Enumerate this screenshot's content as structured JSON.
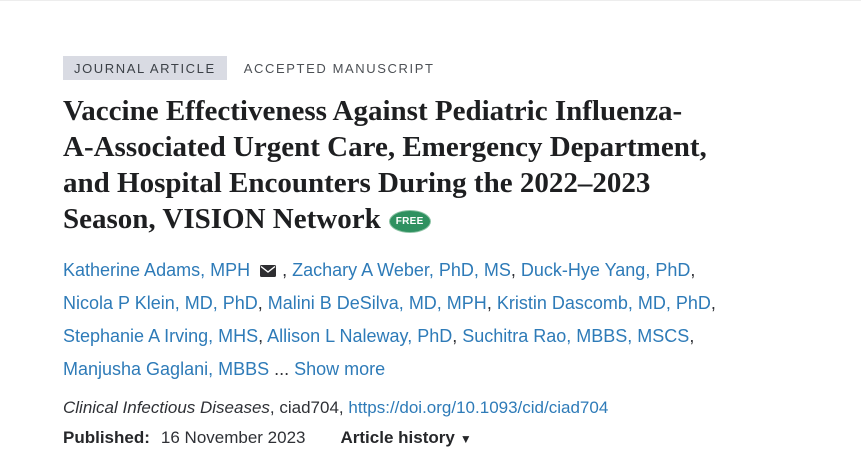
{
  "header": {
    "badge_label": "JOURNAL ARTICLE",
    "manuscript_label": "ACCEPTED MANUSCRIPT"
  },
  "title": {
    "lines": [
      "Vaccine Effectiveness Against Pediatric Influenza-",
      "A-Associated Urgent Care, Emergency Department,",
      "and Hospital Encounters During the 2022–2023"
    ],
    "last_line": "Season, VISION Network",
    "free_badge": "FREE"
  },
  "authors": {
    "lines": [
      [
        {
          "text": "Katherine Adams, MPH",
          "type": "link"
        },
        {
          "icon": "envelope"
        },
        {
          "text": ", ",
          "type": "plain"
        },
        {
          "text": "Zachary A Weber, PhD, MS",
          "type": "link"
        },
        {
          "text": ", ",
          "type": "plain"
        },
        {
          "text": "Duck-Hye Yang, PhD",
          "type": "link"
        },
        {
          "text": ",",
          "type": "plain"
        }
      ],
      [
        {
          "text": "Nicola P Klein, MD, PhD",
          "type": "link"
        },
        {
          "text": ", ",
          "type": "plain"
        },
        {
          "text": "Malini B DeSilva, MD, MPH",
          "type": "link"
        },
        {
          "text": ", ",
          "type": "plain"
        },
        {
          "text": "Kristin Dascomb, MD, PhD",
          "type": "link"
        },
        {
          "text": ",",
          "type": "plain"
        }
      ],
      [
        {
          "text": "Stephanie A Irving, MHS",
          "type": "link"
        },
        {
          "text": ", ",
          "type": "plain"
        },
        {
          "text": "Allison L Naleway, PhD",
          "type": "link"
        },
        {
          "text": ", ",
          "type": "plain"
        },
        {
          "text": "Suchitra Rao, MBBS, MSCS",
          "type": "link"
        },
        {
          "text": ",",
          "type": "plain"
        }
      ],
      [
        {
          "text": "Manjusha Gaglani, MBBS",
          "type": "link"
        },
        {
          "text": " ... ",
          "type": "plain"
        },
        {
          "text": "Show more",
          "type": "link",
          "name": "show-more-link"
        }
      ]
    ]
  },
  "citation": {
    "journal": "Clinical Infectious Diseases",
    "middle": ", ciad704, ",
    "doi": "https://doi.org/10.1093/cid/ciad704"
  },
  "pubinfo": {
    "published_label": "Published:",
    "published_date": "16 November 2023",
    "article_history_label": "Article history",
    "caret": "▼"
  },
  "colors": {
    "link_blue": "#2e7bb8",
    "free_green": "#2f9160",
    "badge_bg": "#d9dbe3",
    "title_text": "#1e1f21"
  }
}
